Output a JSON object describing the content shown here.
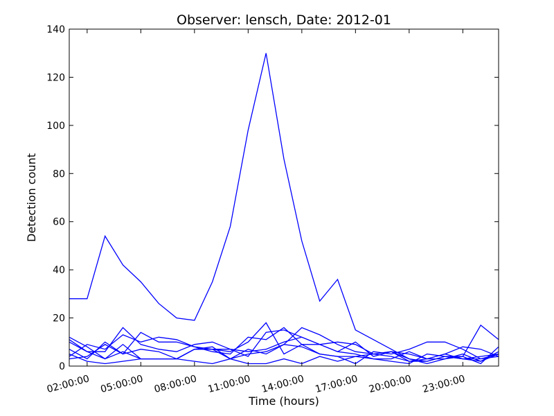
{
  "chart_data": {
    "type": "line",
    "title": "Observer: lensch, Date: 2012-01",
    "xlabel": "Time (hours)",
    "ylabel": "Detection count",
    "x_hours": [
      1,
      2,
      3,
      4,
      5,
      6,
      7,
      8,
      9,
      10,
      11,
      12,
      13,
      14,
      15,
      16,
      17,
      18,
      19,
      20,
      21,
      22,
      23,
      24,
      25
    ],
    "x_ticks": [
      {
        "hour": 2,
        "label": "02:00:00"
      },
      {
        "hour": 5,
        "label": "05:00:00"
      },
      {
        "hour": 8,
        "label": "08:00:00"
      },
      {
        "hour": 11,
        "label": "11:00:00"
      },
      {
        "hour": 14,
        "label": "14:00:00"
      },
      {
        "hour": 17,
        "label": "17:00:00"
      },
      {
        "hour": 20,
        "label": "20:00:00"
      },
      {
        "hour": 23,
        "label": "23:00:00"
      }
    ],
    "xlim": [
      1,
      25
    ],
    "ylim": [
      0,
      140
    ],
    "y_ticks": [
      0,
      20,
      40,
      60,
      80,
      100,
      120,
      140
    ],
    "series": [
      {
        "values": [
          28,
          28,
          54,
          42,
          35,
          26,
          20,
          19,
          35,
          58,
          98,
          130,
          86,
          52,
          27,
          36,
          15,
          11,
          7,
          3,
          2,
          4,
          3,
          2,
          5
        ]
      },
      {
        "values": [
          12,
          8,
          3,
          9,
          3,
          3,
          3,
          7,
          7,
          6,
          10,
          18,
          5,
          9,
          5,
          4,
          4,
          5,
          6,
          3,
          1,
          3,
          4,
          17,
          11
        ]
      },
      {
        "values": [
          10,
          6,
          6,
          16,
          9,
          7,
          6,
          9,
          10,
          7,
          4,
          14,
          15,
          12,
          9,
          6,
          5,
          3,
          3,
          6,
          3,
          3,
          5,
          2,
          6
        ]
      },
      {
        "values": [
          7,
          3,
          10,
          5,
          14,
          10,
          10,
          8,
          7,
          3,
          7,
          5,
          9,
          16,
          13,
          9,
          6,
          5,
          6,
          5,
          3,
          5,
          8,
          7,
          4
        ]
      },
      {
        "values": [
          4,
          9,
          7,
          13,
          10,
          12,
          11,
          8,
          6,
          5,
          12,
          11,
          16,
          9,
          9,
          10,
          9,
          5,
          4,
          2,
          2,
          4,
          3,
          3,
          5
        ]
      },
      {
        "values": [
          5,
          2,
          1,
          2,
          3,
          3,
          3,
          2,
          1,
          3,
          1,
          1,
          3,
          1,
          4,
          2,
          4,
          3,
          2,
          1,
          5,
          4,
          4,
          1,
          8
        ]
      },
      {
        "values": [
          3,
          4,
          9,
          5,
          7,
          6,
          3,
          7,
          8,
          3,
          5,
          6,
          9,
          8,
          5,
          4,
          1,
          6,
          5,
          7,
          10,
          10,
          7,
          3,
          4
        ]
      },
      {
        "values": [
          11,
          6,
          3,
          6,
          3,
          3,
          3,
          7,
          7,
          7,
          6,
          7,
          10,
          12,
          9,
          6,
          10,
          4,
          6,
          2,
          3,
          5,
          3,
          4,
          5
        ]
      }
    ]
  }
}
